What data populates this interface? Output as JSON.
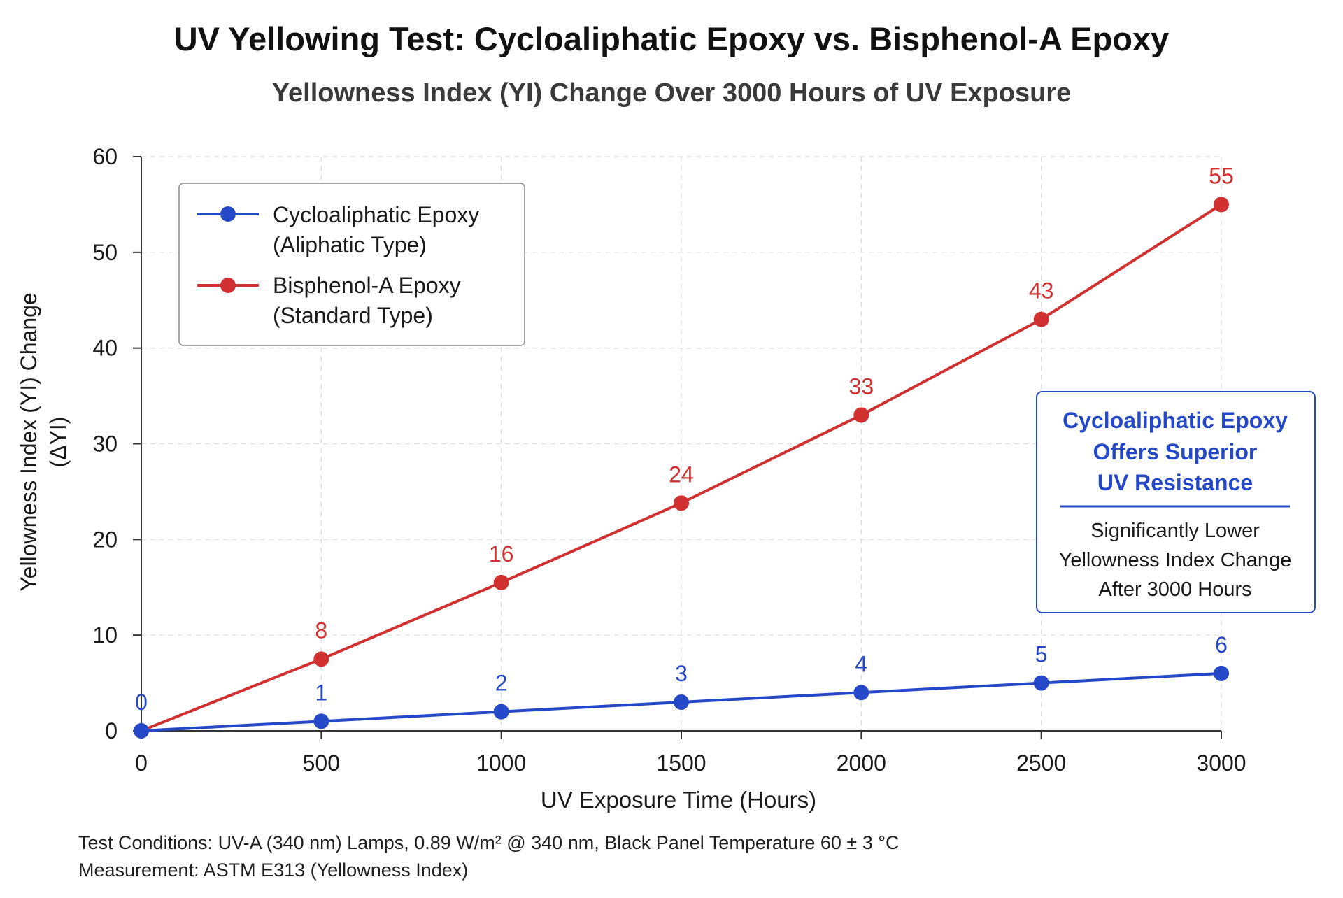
{
  "chart_data": {
    "type": "line",
    "title": "UV Yellowing Test: Cycloaliphatic Epoxy vs. Bisphenol-A Epoxy",
    "subtitle": "Yellowness Index (YI) Change Over 3000 Hours of UV Exposure",
    "xlabel": "UV Exposure Time (Hours)",
    "ylabel_line1": "Yellowness Index (YI) Change",
    "ylabel_line2": "(ΔYI)",
    "x": [
      0,
      500,
      1000,
      1500,
      2000,
      2500,
      3000
    ],
    "xlim": [
      0,
      3000
    ],
    "ylim": [
      0,
      60
    ],
    "xticks": [
      "0",
      "500",
      "1000",
      "1500",
      "2000",
      "2500",
      "3000"
    ],
    "yticks": [
      "0",
      "10",
      "20",
      "30",
      "40",
      "50",
      "60"
    ],
    "grid": true,
    "legend_position": "top-left",
    "series": [
      {
        "name_line1": "Cycloaliphatic Epoxy",
        "name_line2": "(Aliphatic Type)",
        "color": "#2448c8",
        "values": [
          0,
          1,
          2,
          3,
          4,
          5,
          6
        ],
        "labels": [
          "0",
          "1",
          "2",
          "3",
          "4",
          "5",
          "6"
        ]
      },
      {
        "name_line1": "Bisphenol-A Epoxy",
        "name_line2": "(Standard Type)",
        "color": "#d0302f",
        "values": [
          0,
          7.5,
          15.5,
          23.8,
          33,
          43,
          55
        ],
        "labels": [
          "",
          "8",
          "16",
          "24",
          "33",
          "43",
          "55"
        ]
      }
    ],
    "annotation": {
      "heading": [
        "Cycloaliphatic Epoxy",
        "Offers Superior",
        "UV Resistance"
      ],
      "body": [
        "Significantly Lower",
        "Yellowness Index Change",
        "After 3000 Hours"
      ],
      "color": "#2448c8"
    }
  },
  "footnotes": [
    "Test Conditions: UV-A (340 nm) Lamps, 0.89 W/m² @ 340 nm, Black Panel Temperature 60 ± 3 °C",
    "Measurement: ASTM E313 (Yellowness Index)"
  ]
}
